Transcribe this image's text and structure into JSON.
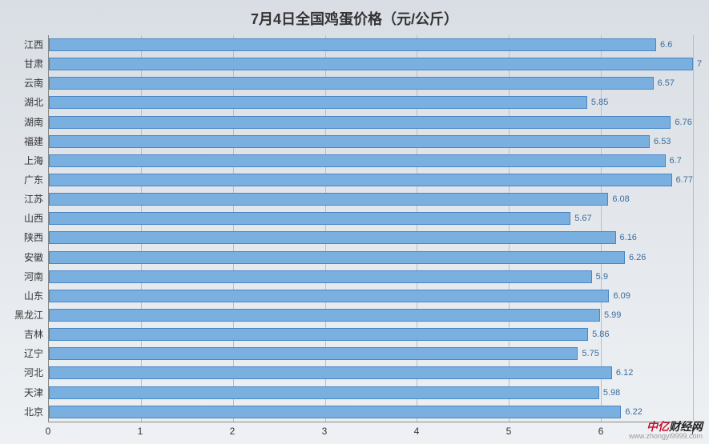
{
  "chart": {
    "type": "horizontal-bar",
    "title": "7月4日全国鸡蛋价格（元/公斤）",
    "title_fontsize": 18,
    "title_color": "#333333",
    "background_gradient_top": "#d9dee4",
    "background_gradient_bottom": "#eef1f4",
    "bar_color": "#7ab0e0",
    "bar_border_color": "#4a86c5",
    "data_label_color": "#3a6da1",
    "data_label_fontsize": 11,
    "ylabel_color": "#333333",
    "ylabel_fontsize": 12,
    "xtick_color": "#333333",
    "xtick_fontsize": 12,
    "gridline_color": "#b8bfc7",
    "axis_color": "#888888",
    "xlim": [
      0,
      7
    ],
    "xtick_step": 1,
    "xticks": [
      0,
      1,
      2,
      3,
      4,
      5,
      6,
      7
    ],
    "categories": [
      "江西",
      "甘肃",
      "云南",
      "湖北",
      "湖南",
      "福建",
      "上海",
      "广东",
      "江苏",
      "山西",
      "陕西",
      "安徽",
      "河南",
      "山东",
      "黑龙江",
      "吉林",
      "辽宁",
      "河北",
      "天津",
      "北京"
    ],
    "values": [
      6.6,
      7,
      6.57,
      5.85,
      6.76,
      6.53,
      6.7,
      6.77,
      6.08,
      5.67,
      6.16,
      6.26,
      5.9,
      6.09,
      5.99,
      5.86,
      5.75,
      6.12,
      5.98,
      6.22
    ],
    "value_labels": [
      "6.6",
      "7",
      "6.57",
      "5.85",
      "6.76",
      "6.53",
      "6.7",
      "6.77",
      "6.08",
      "5.67",
      "6.16",
      "6.26",
      "5.9",
      "6.09",
      "5.99",
      "5.86",
      "5.75",
      "6.12",
      "5.98",
      "6.22"
    ]
  },
  "watermark": {
    "brand_prefix": "中亿",
    "brand_suffix": "财经网",
    "url": "www.zhongyi9999.com"
  }
}
